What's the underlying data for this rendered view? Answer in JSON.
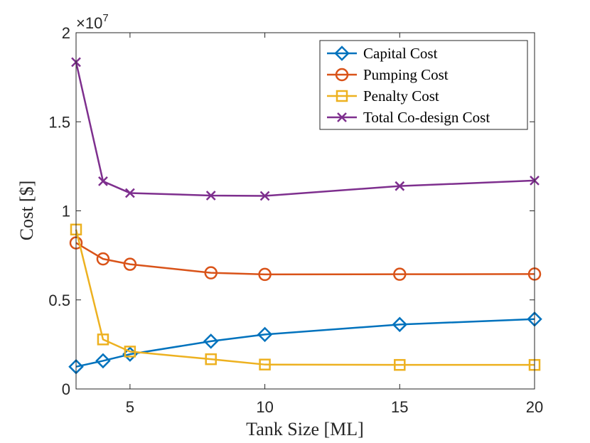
{
  "chart_data": {
    "type": "line",
    "xlabel": "Tank Size [ML]",
    "ylabel": "Cost [$]",
    "xlim": [
      3,
      20
    ],
    "ylim": [
      0,
      20000000
    ],
    "xticks": [
      5,
      10,
      15,
      20
    ],
    "yticks": [
      0,
      5000000,
      10000000,
      15000000,
      20000000
    ],
    "ytick_labels": [
      "0",
      "0.5",
      "1",
      "1.5",
      "2"
    ],
    "y_multiplier_base": "×10",
    "y_multiplier_exp": "7",
    "grid": false,
    "legend_position": "top-right",
    "x": [
      3,
      4,
      5,
      8,
      10,
      15,
      20
    ],
    "series": [
      {
        "name": "Capital Cost",
        "color": "#0072BD",
        "marker": "diamond",
        "values": [
          1250000,
          1580000,
          1950000,
          2680000,
          3060000,
          3620000,
          3920000
        ]
      },
      {
        "name": "Pumping Cost",
        "color": "#D95319",
        "marker": "circle",
        "values": [
          8200000,
          7300000,
          7000000,
          6520000,
          6430000,
          6440000,
          6450000
        ]
      },
      {
        "name": "Penalty Cost",
        "color": "#EDB120",
        "marker": "square",
        "values": [
          8950000,
          2780000,
          2100000,
          1670000,
          1370000,
          1350000,
          1350000
        ]
      },
      {
        "name": "Total Co-design Cost",
        "color": "#7E2F8E",
        "marker": "x",
        "values": [
          18350000,
          11660000,
          11000000,
          10860000,
          10840000,
          11390000,
          11700000
        ]
      }
    ]
  }
}
